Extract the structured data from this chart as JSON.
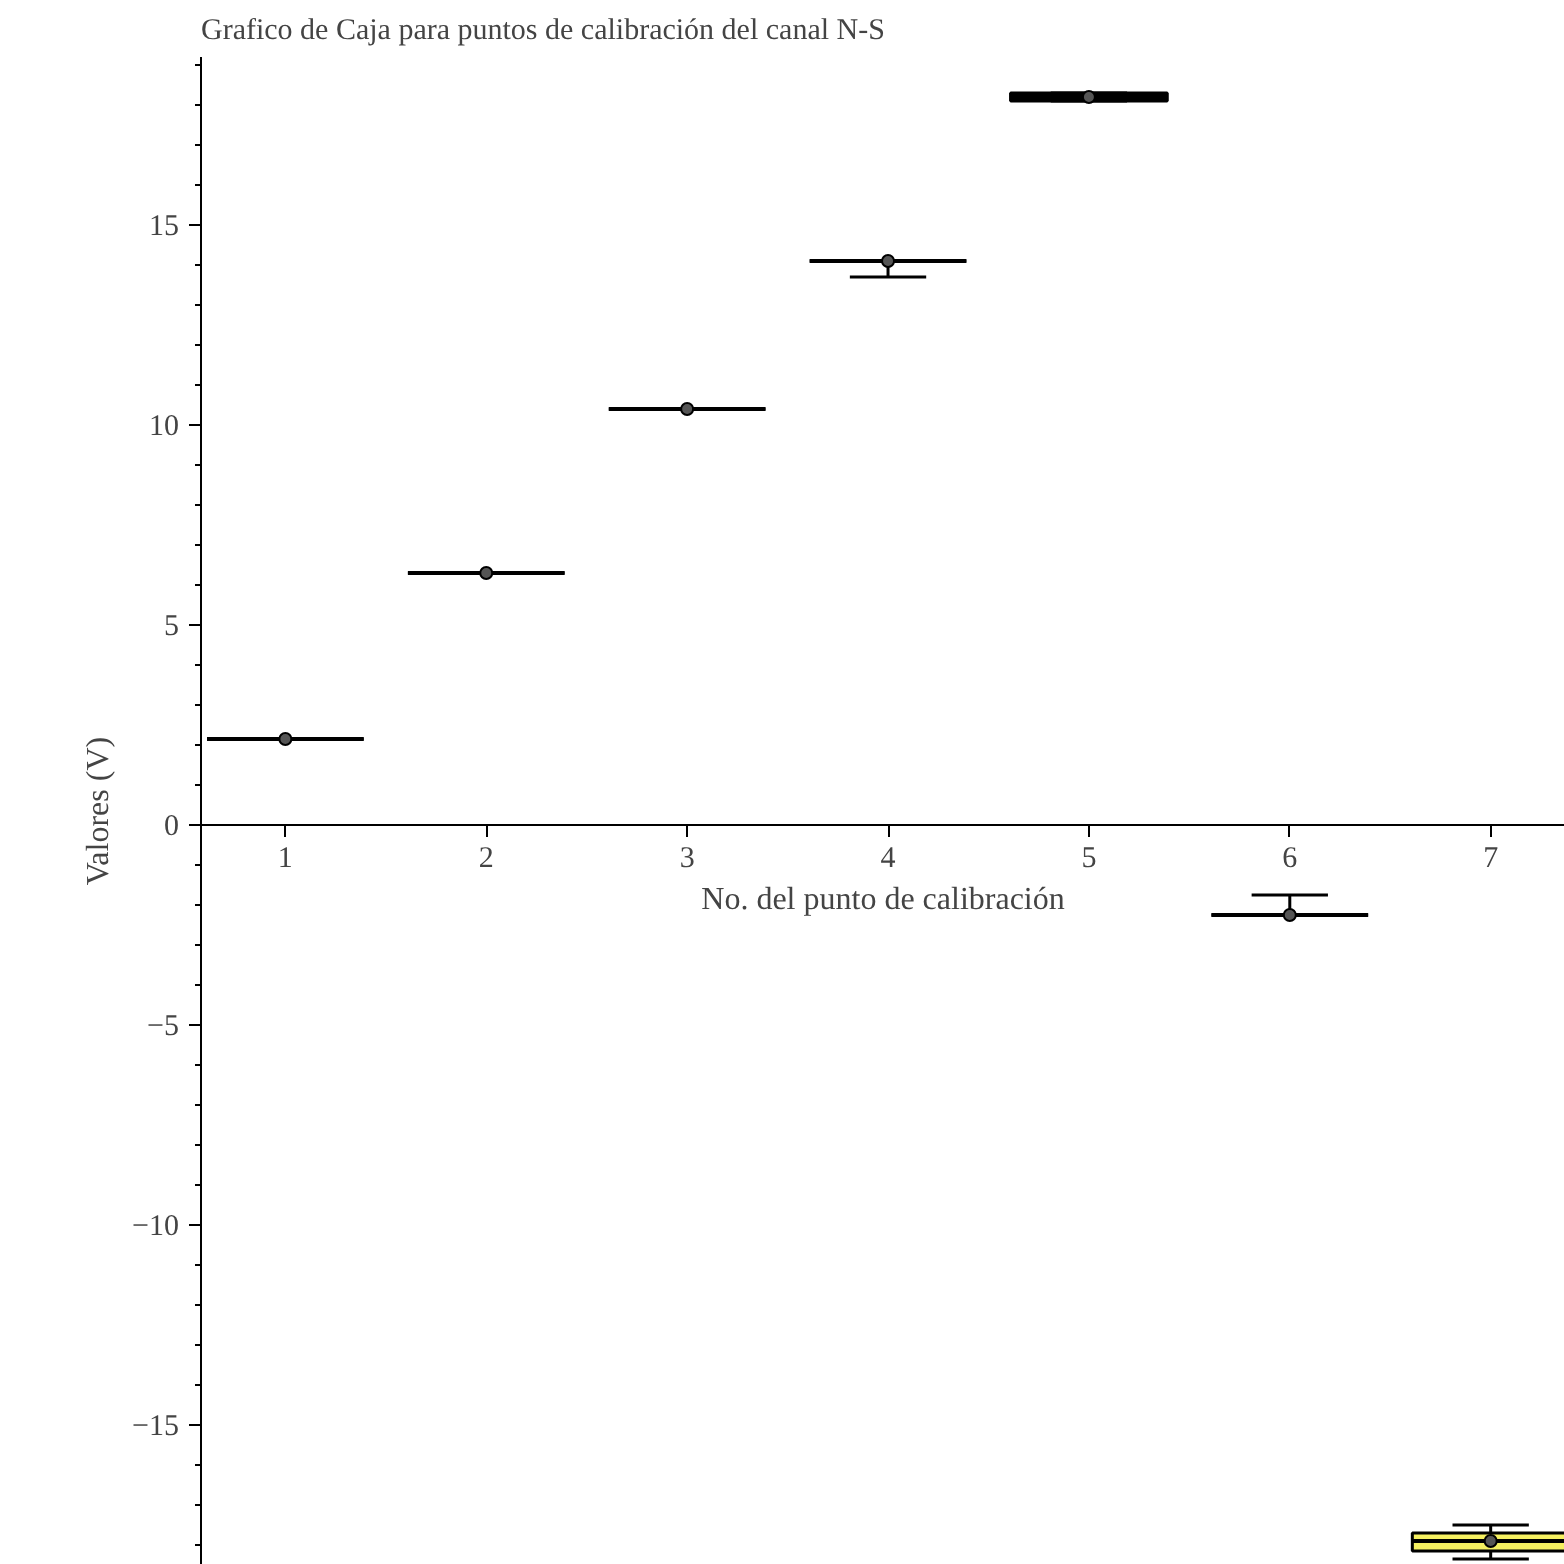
{
  "chart_data": {
    "type": "box",
    "title": "Grafico de Caja para puntos de calibración del canal N-S",
    "xlabel": "No. del punto de calibración",
    "ylabel": "Valores (V)",
    "categories": [
      "1",
      "2",
      "3",
      "4",
      "5",
      "6",
      "7"
    ],
    "colors": [
      "#000000",
      "#000000",
      "#000000",
      "#000000",
      "#000000",
      "#000000",
      "#f5f060"
    ],
    "boxes": [
      {
        "low": 2.15,
        "q1": 2.15,
        "median": 2.15,
        "q3": 2.15,
        "high": 2.15,
        "mean": 2.15
      },
      {
        "low": 6.3,
        "q1": 6.3,
        "median": 6.3,
        "q3": 6.3,
        "high": 6.3,
        "mean": 6.3
      },
      {
        "low": 10.4,
        "q1": 10.4,
        "median": 10.4,
        "q3": 10.4,
        "high": 10.4,
        "mean": 10.4
      },
      {
        "low": 13.7,
        "q1": 14.1,
        "median": 14.1,
        "q3": 14.1,
        "high": 14.1,
        "mean": 14.1
      },
      {
        "low": 18.1,
        "q1": 18.1,
        "median": 18.2,
        "q3": 18.3,
        "high": 18.3,
        "mean": 18.2
      },
      {
        "low": -2.25,
        "q1": -2.25,
        "median": -2.25,
        "q3": -2.25,
        "high": -1.75,
        "mean": -2.25
      },
      {
        "low": -18.35,
        "q1": -18.15,
        "median": -17.9,
        "q3": -17.7,
        "high": -17.5,
        "mean": -17.9
      }
    ],
    "ylim": [
      -18.5,
      19.2
    ],
    "yticks": [
      -15,
      -10,
      -5,
      0,
      5,
      10,
      15
    ],
    "grid": false
  }
}
